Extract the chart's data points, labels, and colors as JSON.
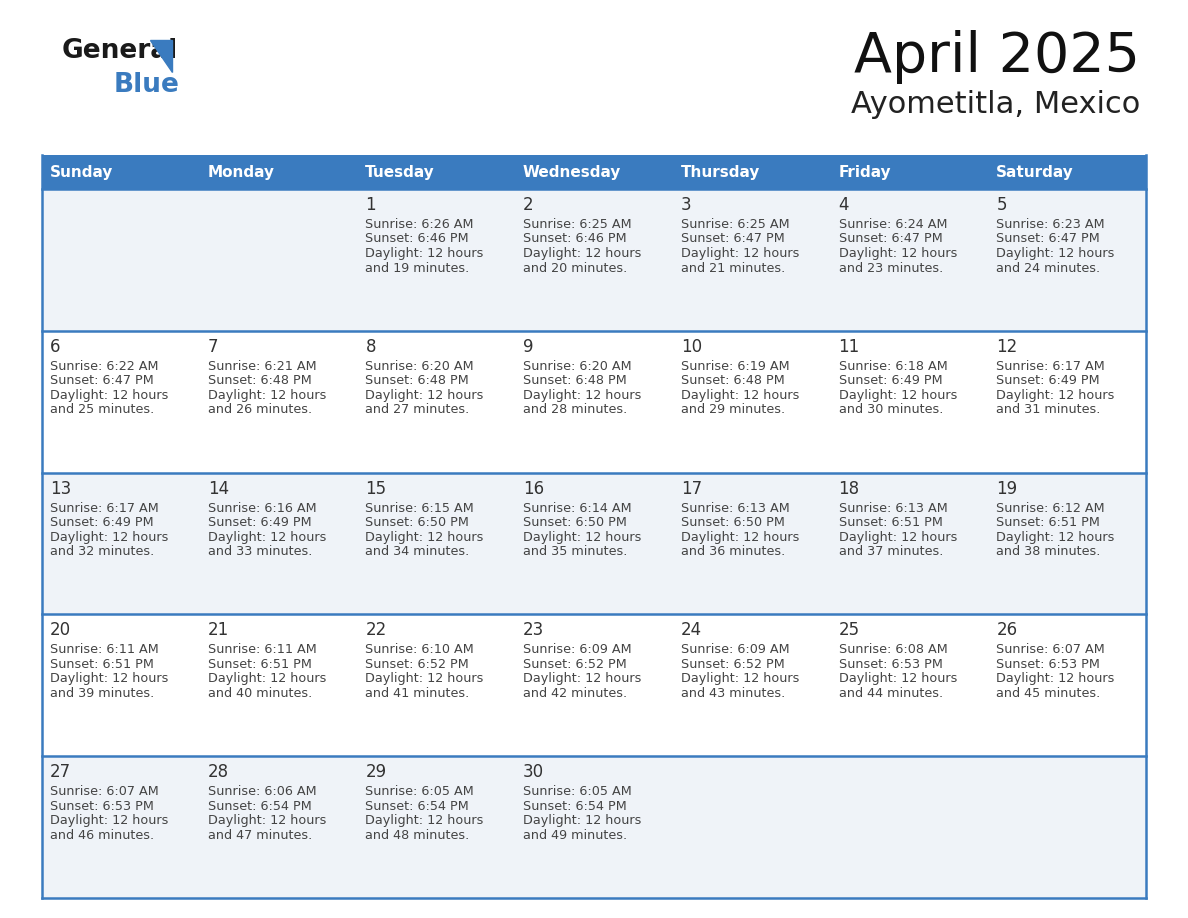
{
  "title": "April 2025",
  "subtitle": "Ayometitla, Mexico",
  "header_bg_color": "#3a7bbf",
  "header_text_color": "#ffffff",
  "day_names": [
    "Sunday",
    "Monday",
    "Tuesday",
    "Wednesday",
    "Thursday",
    "Friday",
    "Saturday"
  ],
  "row_bg_colors": [
    "#eff3f8",
    "#ffffff"
  ],
  "grid_line_color": "#3a7bbf",
  "date_color": "#333333",
  "text_color": "#444444",
  "days": [
    {
      "date": 1,
      "col": 2,
      "row": 0,
      "sunrise": "6:26 AM",
      "sunset": "6:46 PM",
      "daylight_line1": "Daylight: 12 hours",
      "daylight_line2": "and 19 minutes."
    },
    {
      "date": 2,
      "col": 3,
      "row": 0,
      "sunrise": "6:25 AM",
      "sunset": "6:46 PM",
      "daylight_line1": "Daylight: 12 hours",
      "daylight_line2": "and 20 minutes."
    },
    {
      "date": 3,
      "col": 4,
      "row": 0,
      "sunrise": "6:25 AM",
      "sunset": "6:47 PM",
      "daylight_line1": "Daylight: 12 hours",
      "daylight_line2": "and 21 minutes."
    },
    {
      "date": 4,
      "col": 5,
      "row": 0,
      "sunrise": "6:24 AM",
      "sunset": "6:47 PM",
      "daylight_line1": "Daylight: 12 hours",
      "daylight_line2": "and 23 minutes."
    },
    {
      "date": 5,
      "col": 6,
      "row": 0,
      "sunrise": "6:23 AM",
      "sunset": "6:47 PM",
      "daylight_line1": "Daylight: 12 hours",
      "daylight_line2": "and 24 minutes."
    },
    {
      "date": 6,
      "col": 0,
      "row": 1,
      "sunrise": "6:22 AM",
      "sunset": "6:47 PM",
      "daylight_line1": "Daylight: 12 hours",
      "daylight_line2": "and 25 minutes."
    },
    {
      "date": 7,
      "col": 1,
      "row": 1,
      "sunrise": "6:21 AM",
      "sunset": "6:48 PM",
      "daylight_line1": "Daylight: 12 hours",
      "daylight_line2": "and 26 minutes."
    },
    {
      "date": 8,
      "col": 2,
      "row": 1,
      "sunrise": "6:20 AM",
      "sunset": "6:48 PM",
      "daylight_line1": "Daylight: 12 hours",
      "daylight_line2": "and 27 minutes."
    },
    {
      "date": 9,
      "col": 3,
      "row": 1,
      "sunrise": "6:20 AM",
      "sunset": "6:48 PM",
      "daylight_line1": "Daylight: 12 hours",
      "daylight_line2": "and 28 minutes."
    },
    {
      "date": 10,
      "col": 4,
      "row": 1,
      "sunrise": "6:19 AM",
      "sunset": "6:48 PM",
      "daylight_line1": "Daylight: 12 hours",
      "daylight_line2": "and 29 minutes."
    },
    {
      "date": 11,
      "col": 5,
      "row": 1,
      "sunrise": "6:18 AM",
      "sunset": "6:49 PM",
      "daylight_line1": "Daylight: 12 hours",
      "daylight_line2": "and 30 minutes."
    },
    {
      "date": 12,
      "col": 6,
      "row": 1,
      "sunrise": "6:17 AM",
      "sunset": "6:49 PM",
      "daylight_line1": "Daylight: 12 hours",
      "daylight_line2": "and 31 minutes."
    },
    {
      "date": 13,
      "col": 0,
      "row": 2,
      "sunrise": "6:17 AM",
      "sunset": "6:49 PM",
      "daylight_line1": "Daylight: 12 hours",
      "daylight_line2": "and 32 minutes."
    },
    {
      "date": 14,
      "col": 1,
      "row": 2,
      "sunrise": "6:16 AM",
      "sunset": "6:49 PM",
      "daylight_line1": "Daylight: 12 hours",
      "daylight_line2": "and 33 minutes."
    },
    {
      "date": 15,
      "col": 2,
      "row": 2,
      "sunrise": "6:15 AM",
      "sunset": "6:50 PM",
      "daylight_line1": "Daylight: 12 hours",
      "daylight_line2": "and 34 minutes."
    },
    {
      "date": 16,
      "col": 3,
      "row": 2,
      "sunrise": "6:14 AM",
      "sunset": "6:50 PM",
      "daylight_line1": "Daylight: 12 hours",
      "daylight_line2": "and 35 minutes."
    },
    {
      "date": 17,
      "col": 4,
      "row": 2,
      "sunrise": "6:13 AM",
      "sunset": "6:50 PM",
      "daylight_line1": "Daylight: 12 hours",
      "daylight_line2": "and 36 minutes."
    },
    {
      "date": 18,
      "col": 5,
      "row": 2,
      "sunrise": "6:13 AM",
      "sunset": "6:51 PM",
      "daylight_line1": "Daylight: 12 hours",
      "daylight_line2": "and 37 minutes."
    },
    {
      "date": 19,
      "col": 6,
      "row": 2,
      "sunrise": "6:12 AM",
      "sunset": "6:51 PM",
      "daylight_line1": "Daylight: 12 hours",
      "daylight_line2": "and 38 minutes."
    },
    {
      "date": 20,
      "col": 0,
      "row": 3,
      "sunrise": "6:11 AM",
      "sunset": "6:51 PM",
      "daylight_line1": "Daylight: 12 hours",
      "daylight_line2": "and 39 minutes."
    },
    {
      "date": 21,
      "col": 1,
      "row": 3,
      "sunrise": "6:11 AM",
      "sunset": "6:51 PM",
      "daylight_line1": "Daylight: 12 hours",
      "daylight_line2": "and 40 minutes."
    },
    {
      "date": 22,
      "col": 2,
      "row": 3,
      "sunrise": "6:10 AM",
      "sunset": "6:52 PM",
      "daylight_line1": "Daylight: 12 hours",
      "daylight_line2": "and 41 minutes."
    },
    {
      "date": 23,
      "col": 3,
      "row": 3,
      "sunrise": "6:09 AM",
      "sunset": "6:52 PM",
      "daylight_line1": "Daylight: 12 hours",
      "daylight_line2": "and 42 minutes."
    },
    {
      "date": 24,
      "col": 4,
      "row": 3,
      "sunrise": "6:09 AM",
      "sunset": "6:52 PM",
      "daylight_line1": "Daylight: 12 hours",
      "daylight_line2": "and 43 minutes."
    },
    {
      "date": 25,
      "col": 5,
      "row": 3,
      "sunrise": "6:08 AM",
      "sunset": "6:53 PM",
      "daylight_line1": "Daylight: 12 hours",
      "daylight_line2": "and 44 minutes."
    },
    {
      "date": 26,
      "col": 6,
      "row": 3,
      "sunrise": "6:07 AM",
      "sunset": "6:53 PM",
      "daylight_line1": "Daylight: 12 hours",
      "daylight_line2": "and 45 minutes."
    },
    {
      "date": 27,
      "col": 0,
      "row": 4,
      "sunrise": "6:07 AM",
      "sunset": "6:53 PM",
      "daylight_line1": "Daylight: 12 hours",
      "daylight_line2": "and 46 minutes."
    },
    {
      "date": 28,
      "col": 1,
      "row": 4,
      "sunrise": "6:06 AM",
      "sunset": "6:54 PM",
      "daylight_line1": "Daylight: 12 hours",
      "daylight_line2": "and 47 minutes."
    },
    {
      "date": 29,
      "col": 2,
      "row": 4,
      "sunrise": "6:05 AM",
      "sunset": "6:54 PM",
      "daylight_line1": "Daylight: 12 hours",
      "daylight_line2": "and 48 minutes."
    },
    {
      "date": 30,
      "col": 3,
      "row": 4,
      "sunrise": "6:05 AM",
      "sunset": "6:54 PM",
      "daylight_line1": "Daylight: 12 hours",
      "daylight_line2": "and 49 minutes."
    }
  ]
}
